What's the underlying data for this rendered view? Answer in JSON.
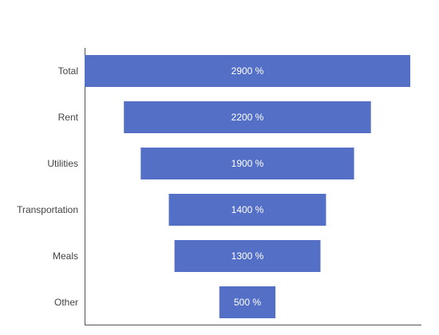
{
  "chart_data": {
    "type": "bar",
    "orientation": "horizontal",
    "style": "funnel",
    "categories": [
      "Total",
      "Rent",
      "Utilities",
      "Transportation",
      "Meals",
      "Other"
    ],
    "values": [
      2900,
      2200,
      1900,
      1400,
      1300,
      500
    ],
    "data_labels": [
      "2900 %",
      "2200 %",
      "1900 %",
      "1400 %",
      "1300 %",
      "500 %"
    ],
    "title": "",
    "xlabel": "",
    "ylabel": "",
    "grid": false,
    "legend": "none",
    "colors": {
      "bar": "#5470c6",
      "bar_text": "#ffffff",
      "axis": "#555555",
      "category_text": "#444444"
    }
  }
}
